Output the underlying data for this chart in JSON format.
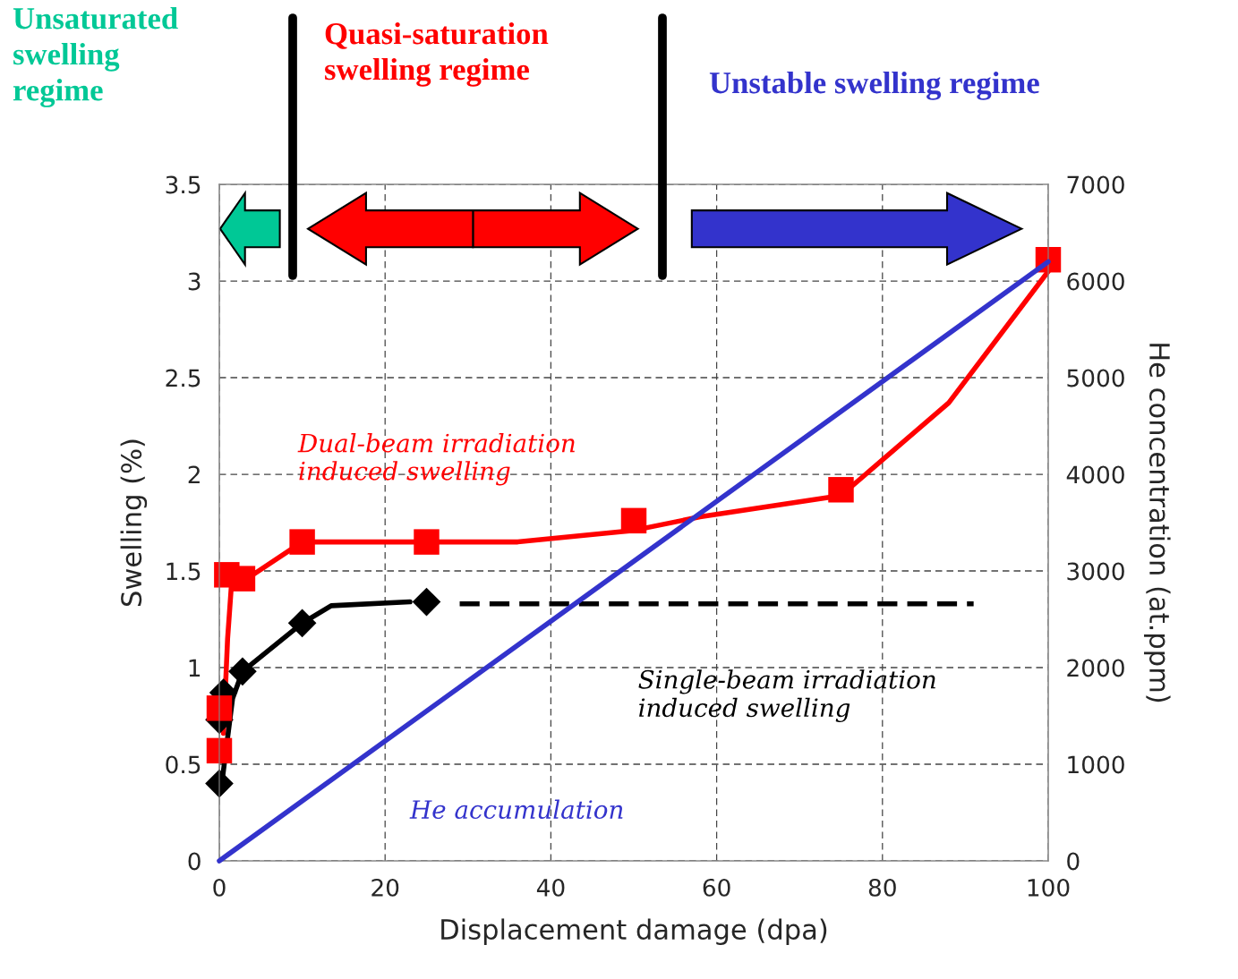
{
  "chart_data": {
    "type": "line",
    "xlabel": "Displacement damage (dpa)",
    "ylabel": "Swelling (%)",
    "y2label": "He concentration (at.ppm)",
    "xlim": [
      0,
      100
    ],
    "xticks": [
      0,
      20,
      40,
      60,
      80,
      100
    ],
    "ylim": [
      0,
      3.5
    ],
    "yticks": [
      0,
      0.5,
      1,
      1.5,
      2,
      2.5,
      3,
      3.5
    ],
    "y2lim": [
      0,
      7000
    ],
    "y2ticks": [
      0,
      1000,
      2000,
      3000,
      4000,
      5000,
      6000,
      7000
    ],
    "grid": true,
    "legend": false,
    "series": [
      {
        "color": "#ff0000",
        "x": [
          0.5,
          1,
          1.5,
          3,
          10,
          25,
          36,
          50,
          58,
          75,
          88,
          100
        ],
        "values": [
          0.66,
          1.15,
          1.45,
          1.45,
          1.65,
          1.65,
          1.65,
          1.71,
          1.78,
          1.89,
          2.37,
          3.05
        ],
        "marker": "none"
      },
      {
        "type": "scatter",
        "color": "#ff0000",
        "x": [
          0,
          0,
          0.9,
          2.8,
          10,
          25,
          50,
          75,
          100
        ],
        "values": [
          0.57,
          0.79,
          1.48,
          1.46,
          1.65,
          1.65,
          1.76,
          1.92,
          3.11
        ],
        "marker": "square"
      },
      {
        "color": "#000000",
        "x": [
          0.3,
          1.6,
          2.8,
          10,
          13.5,
          23
        ],
        "values": [
          0.4,
          0.84,
          0.98,
          1.23,
          1.32,
          1.34
        ],
        "marker": "none"
      },
      {
        "type": "scatter",
        "color": "#000000",
        "x": [
          0,
          0,
          0.5,
          2.8,
          10,
          25
        ],
        "values": [
          0.4,
          0.73,
          0.87,
          0.98,
          1.23,
          1.34
        ],
        "marker": "diamond"
      },
      {
        "color": "#000000",
        "x": [
          29,
          91
        ],
        "values": [
          1.33,
          1.33
        ],
        "marker": "none",
        "line_style": "dashed"
      },
      {
        "color": "#3333cc",
        "x": [
          0,
          100
        ],
        "values": [
          0,
          6200
        ],
        "marker": "none",
        "axis": "y2"
      }
    ],
    "annotations": [
      "Unsaturated swelling regime",
      "Quasi-saturation swelling regime",
      "Unstable swelling regime",
      "Dual-beam irradiation induced swelling",
      "Single-beam irradiation induced swelling",
      "He accumulation"
    ]
  }
}
